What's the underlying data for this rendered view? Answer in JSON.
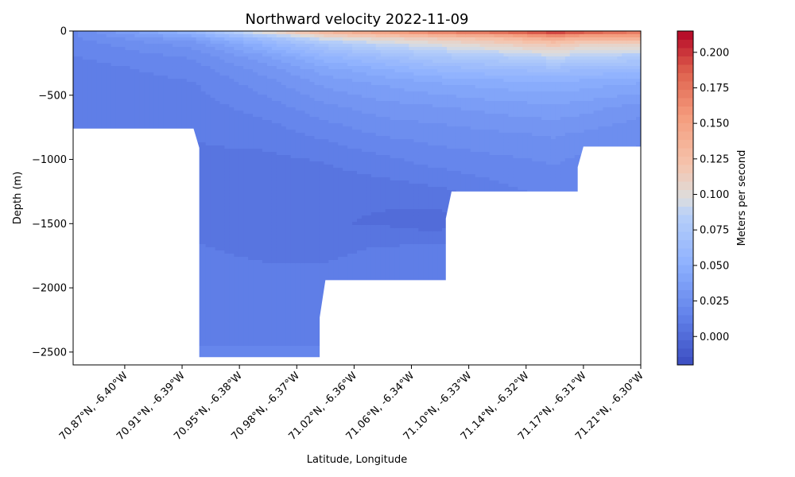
{
  "chart_data": {
    "type": "heatmap",
    "title": "Northward velocity 2022-11-09",
    "xlabel": "Latitude, Longitude",
    "ylabel": "Depth (m)",
    "colorbar_label": "Meters per second",
    "colormap": "coolwarm",
    "x_tick_labels": [
      "70.87°N, -6.40°W",
      "70.91°N, -6.39°W",
      "70.95°N, -6.38°W",
      "70.98°N, -6.37°W",
      "71.02°N, -6.36°W",
      "71.06°N, -6.34°W",
      "71.10°N, -6.33°W",
      "71.14°N, -6.32°W",
      "71.17°N, -6.31°W",
      "71.21°N, -6.30°W"
    ],
    "x_range_index": [
      -0.9,
      9.0
    ],
    "y_ticks": [
      0,
      -500,
      -1000,
      -1500,
      -2000,
      -2500
    ],
    "y_tick_labels": [
      "0",
      "−500",
      "−1000",
      "−1500",
      "−2000",
      "−2500"
    ],
    "ylim": [
      -2600,
      0
    ],
    "color_range": [
      -0.02,
      0.215
    ],
    "colorbar_ticks": [
      0.0,
      0.025,
      0.05,
      0.075,
      0.1,
      0.125,
      0.15,
      0.175,
      0.2
    ],
    "colorbar_tick_labels": [
      "0.000",
      "0.025",
      "0.050",
      "0.075",
      "0.100",
      "0.125",
      "0.150",
      "0.175",
      "0.200"
    ],
    "bottom_profile": [
      {
        "x": -0.9,
        "depth": -760
      },
      {
        "x": 1.2,
        "depth": -760
      },
      {
        "x": 1.3,
        "depth": -910
      },
      {
        "x": 1.3,
        "depth": -2540
      },
      {
        "x": 3.4,
        "depth": -2540
      },
      {
        "x": 3.4,
        "depth": -2230
      },
      {
        "x": 3.5,
        "depth": -1940
      },
      {
        "x": 5.6,
        "depth": -1940
      },
      {
        "x": 5.6,
        "depth": -1460
      },
      {
        "x": 5.7,
        "depth": -1250
      },
      {
        "x": 7.9,
        "depth": -1250
      },
      {
        "x": 7.9,
        "depth": -1060
      },
      {
        "x": 8.0,
        "depth": -900
      },
      {
        "x": 9.0,
        "depth": -900
      }
    ],
    "velocity_field": {
      "x": [
        -0.9,
        1.2,
        2.5,
        3.5,
        4.5,
        5.5,
        6.5,
        7.5,
        8.0,
        9.0
      ],
      "depth": [
        0,
        -50,
        -100,
        -200,
        -300,
        -400,
        -600,
        -800,
        -1000,
        -1300,
        -1500,
        -1700,
        -2000,
        -2300,
        -2540
      ],
      "values": [
        [
          0.02,
          0.06,
          0.11,
          0.14,
          0.16,
          0.18,
          0.19,
          0.21,
          0.2,
          0.18
        ],
        [
          0.02,
          0.04,
          0.07,
          0.1,
          0.11,
          0.12,
          0.13,
          0.15,
          0.14,
          0.14
        ],
        [
          0.018,
          0.03,
          0.055,
          0.075,
          0.09,
          0.1,
          0.11,
          0.12,
          0.11,
          0.11
        ],
        [
          0.015,
          0.022,
          0.038,
          0.055,
          0.065,
          0.075,
          0.08,
          0.09,
          0.085,
          0.08
        ],
        [
          0.012,
          0.018,
          0.03,
          0.042,
          0.05,
          0.058,
          0.062,
          0.065,
          0.062,
          0.06
        ],
        [
          0.012,
          0.015,
          0.025,
          0.035,
          0.04,
          0.045,
          0.048,
          0.05,
          0.048,
          0.045
        ],
        [
          0.012,
          0.012,
          0.018,
          0.025,
          0.03,
          0.032,
          0.035,
          0.037,
          0.035,
          0.03
        ],
        [
          0.012,
          0.01,
          0.012,
          0.017,
          0.022,
          0.024,
          0.026,
          0.028,
          0.026,
          0.022
        ],
        [
          0.012,
          0.008,
          0.008,
          0.01,
          0.014,
          0.018,
          0.02,
          0.022,
          0.02,
          0.02
        ],
        [
          0.012,
          0.007,
          0.004,
          0.004,
          0.004,
          0.006,
          0.012,
          0.016,
          0.016,
          0.016
        ],
        [
          0.012,
          0.008,
          0.006,
          0.004,
          0.003,
          0.0,
          0.012,
          0.016,
          0.016,
          0.016
        ],
        [
          0.012,
          0.01,
          0.008,
          0.008,
          0.01,
          0.012,
          0.014,
          0.016,
          0.016,
          0.016
        ],
        [
          0.012,
          0.012,
          0.012,
          0.012,
          0.013,
          0.014,
          0.014,
          0.016,
          0.016,
          0.016
        ],
        [
          0.012,
          0.014,
          0.014,
          0.014,
          0.014,
          0.014,
          0.014,
          0.016,
          0.016,
          0.016
        ],
        [
          0.012,
          0.016,
          0.016,
          0.016,
          0.016,
          0.016,
          0.016,
          0.016,
          0.016,
          0.016
        ]
      ]
    },
    "grid": false
  }
}
